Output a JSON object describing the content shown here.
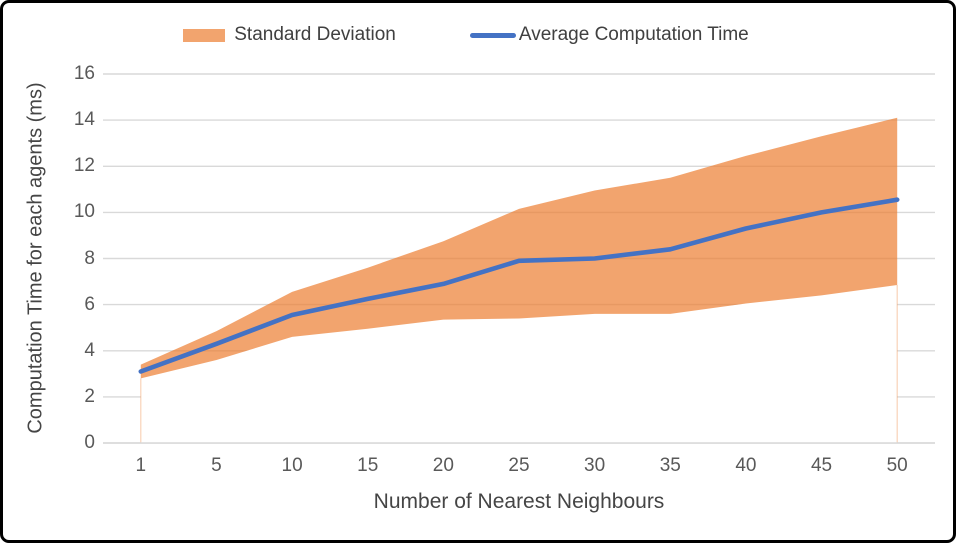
{
  "legend": {
    "items": [
      {
        "label": "Standard Deviation",
        "swatch": "area"
      },
      {
        "label": "Average Computation Time",
        "swatch": "line"
      }
    ]
  },
  "y_axis": {
    "title": "Computation Time for each agents (ms)",
    "tick_labels": [
      "0",
      "2",
      "4",
      "6",
      "8",
      "10",
      "12",
      "14",
      "16"
    ]
  },
  "x_axis": {
    "title": "Number of Nearest Neighbours",
    "tick_labels": [
      "1",
      "5",
      "10",
      "15",
      "20",
      "25",
      "30",
      "35",
      "40",
      "45",
      "50"
    ]
  },
  "colors": {
    "band": "rgba(237,125,49,0.70)",
    "band_edge": "rgba(237,125,49,0.35)",
    "line": "#4472C4",
    "grid": "#D9D9D9",
    "axis": "#D9D9D9",
    "tick_text": "#595959",
    "title_text": "#454545"
  },
  "chart_data": {
    "type": "line",
    "title": "",
    "xlabel": "Number of Nearest Neighbours",
    "ylabel": "Computation Time for each agents (ms)",
    "categories": [
      1,
      5,
      10,
      15,
      20,
      25,
      30,
      35,
      40,
      45,
      50
    ],
    "series": [
      {
        "name": "Average Computation Time",
        "type": "line",
        "values": [
          3.1,
          4.3,
          5.55,
          6.25,
          6.9,
          7.9,
          8.0,
          8.4,
          9.3,
          10.0,
          10.55
        ]
      },
      {
        "name": "Standard Deviation",
        "type": "band",
        "upper": [
          3.4,
          4.85,
          6.55,
          7.6,
          8.75,
          10.15,
          10.95,
          11.5,
          12.45,
          13.3,
          14.1
        ],
        "lower": [
          2.8,
          3.6,
          4.6,
          4.95,
          5.35,
          5.4,
          5.6,
          5.6,
          6.05,
          6.4,
          6.85
        ]
      }
    ],
    "ylim": [
      0,
      16
    ],
    "ytick_step": 2,
    "grid": true,
    "legend_position": "top"
  }
}
